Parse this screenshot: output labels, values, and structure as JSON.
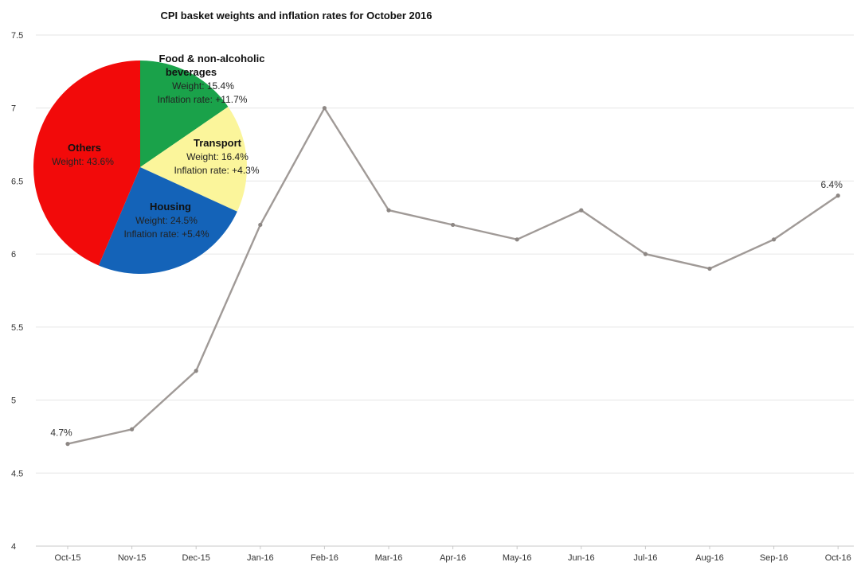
{
  "chart_data": [
    {
      "type": "line",
      "title": "CPI basket weights and inflation rates for October 2016",
      "xlabel": "",
      "ylabel": "",
      "ylim": [
        4,
        7.5
      ],
      "yticks": [
        "7.5",
        "7",
        "6.5",
        "6",
        "5.5",
        "5",
        "4.5",
        "4"
      ],
      "grid": true,
      "categories": [
        "Oct-15",
        "Nov-15",
        "Dec-15",
        "Jan-16",
        "Feb-16",
        "Mar-16",
        "Apr-16",
        "May-16",
        "Jun-16",
        "Jul-16",
        "Aug-16",
        "Sep-16",
        "Oct-16"
      ],
      "series": [
        {
          "values": [
            4.7,
            4.8,
            5.2,
            6.2,
            7.0,
            6.3,
            6.2,
            6.1,
            6.3,
            6.0,
            5.9,
            6.1,
            6.4
          ]
        }
      ],
      "data_labels": [
        {
          "index": 0,
          "text": "4.7%"
        },
        {
          "index": 12,
          "text": "6.4%"
        }
      ],
      "line_color": "#a09a97"
    },
    {
      "type": "pie",
      "slices": [
        {
          "name": "Food & non-alcoholic beverages",
          "value": 15.4,
          "weight_label": "Weight: 15.4%",
          "rate_label": "Inflation rate: +11.7%",
          "color": "#1aa24a"
        },
        {
          "name": "Transport",
          "value": 16.4,
          "weight_label": "Weight: 16.4%",
          "rate_label": "Inflation rate: +4.3%",
          "color": "#fbf59b"
        },
        {
          "name": "Housing",
          "value": 24.5,
          "weight_label": "Weight: 24.5%",
          "rate_label": "Inflation rate: +5.4%",
          "color": "#1463b8"
        },
        {
          "name": "Others",
          "value": 43.6,
          "weight_label": "Weight: 43.6%",
          "rate_label": "",
          "color": "#f20a0a"
        }
      ]
    }
  ]
}
